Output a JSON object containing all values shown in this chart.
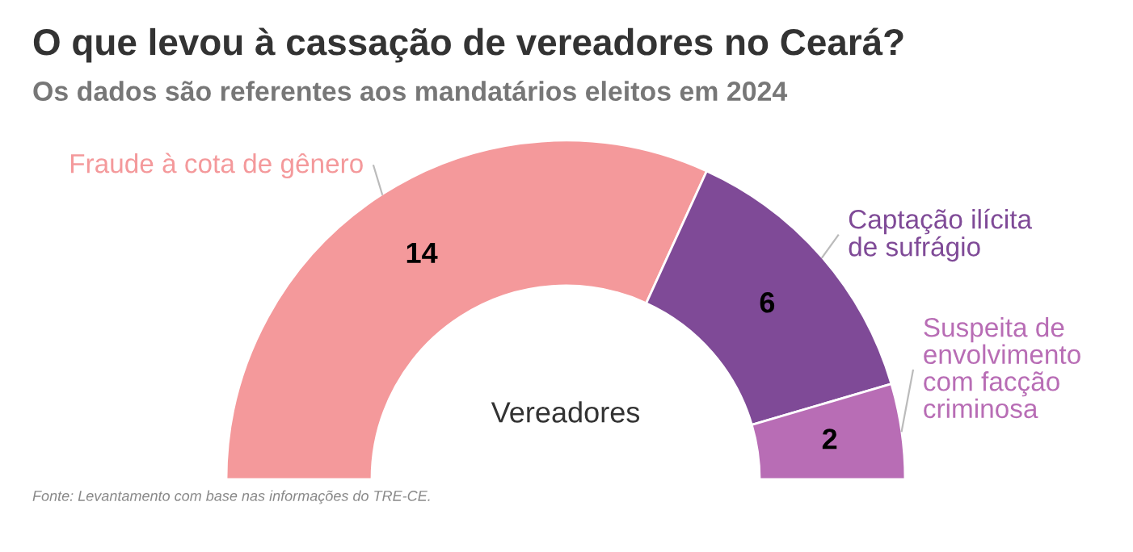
{
  "chart_data": {
    "type": "donut",
    "title": "O que levou à cassação de vereadores no Ceará?",
    "subtitle": "Os dados são referentes aos mandatários eleitos em 2024",
    "categories": [
      "Fraude à cota de gênero",
      "Captação ilícita de sufrágio",
      "Suspeita de envolvimento com facção criminosa"
    ],
    "values": [
      14,
      6,
      2
    ],
    "colors": [
      "#f4999b",
      "#7f4a97",
      "#b86db5"
    ],
    "data_labels": true,
    "annotations": [
      "Vereadores",
      "Fonte: Levantamento com base nas informações do TRE-CE."
    ]
  }
}
